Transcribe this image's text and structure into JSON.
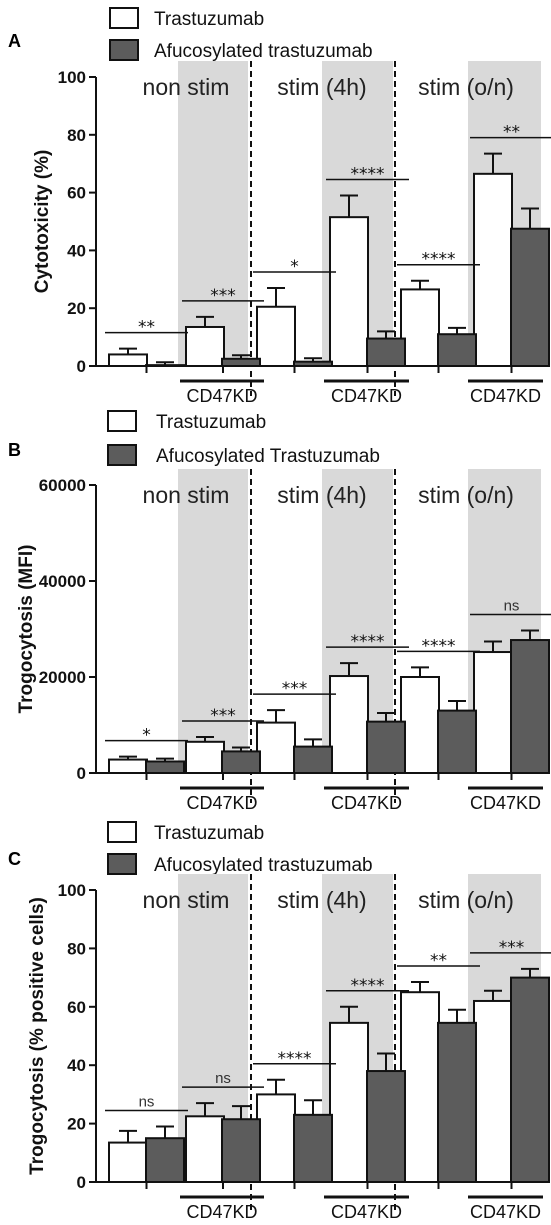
{
  "colors": {
    "trastuzumab": "#ffffff",
    "afucosylated": "#5c5c5c",
    "shade": "#d9d9d9"
  },
  "chart_data": [
    {
      "panel": "A",
      "type": "bar",
      "legend": [
        "Trastuzumab",
        "Afucosylated trastuzumab"
      ],
      "ylabel": "Cytotoxicity (%)",
      "ylim": [
        0,
        100
      ],
      "yticks": [
        "0",
        "20",
        "40",
        "60",
        "80",
        "100"
      ],
      "conditions": [
        "non stim",
        "stim (4h)",
        "stim (o/n)"
      ],
      "kd_label": "CD47KD",
      "series": [
        {
          "name": "Trastuzumab",
          "values": [
            4,
            13.5,
            20.5,
            51.5,
            26.5,
            66.5
          ],
          "errors": [
            2,
            3.5,
            6.5,
            7.5,
            3,
            7
          ]
        },
        {
          "name": "Afucosylated trastuzumab",
          "values": [
            0.3,
            2.5,
            1.5,
            9.5,
            11,
            47.5
          ],
          "errors": [
            1,
            1.2,
            1.2,
            2.5,
            2.2,
            7
          ]
        }
      ],
      "significance": [
        "**",
        "***",
        "*",
        "****",
        "****",
        "**"
      ]
    },
    {
      "panel": "B",
      "type": "bar",
      "legend": [
        "Trastuzumab",
        "Afucosylated Trastuzumab"
      ],
      "ylabel": "Trogocytosis (MFI)",
      "ylim": [
        0,
        60000
      ],
      "yticks": [
        "0",
        "20000",
        "40000",
        "60000"
      ],
      "conditions": [
        "non stim",
        "stim (4h)",
        "stim (o/n)"
      ],
      "kd_label": "CD47KD",
      "series": [
        {
          "name": "Trastuzumab",
          "values": [
            2800,
            6500,
            10500,
            20200,
            20000,
            25200
          ],
          "errors": [
            600,
            1000,
            2600,
            2700,
            2000,
            2200
          ]
        },
        {
          "name": "Afucosylated Trastuzumab",
          "values": [
            2400,
            4500,
            5500,
            10700,
            13000,
            27700
          ],
          "errors": [
            600,
            800,
            1500,
            1800,
            2000,
            2000
          ]
        }
      ],
      "significance": [
        "*",
        "***",
        "***",
        "****",
        "****",
        "ns"
      ]
    },
    {
      "panel": "C",
      "type": "bar",
      "legend": [
        "Trastuzumab",
        "Afucosylated trastuzumab"
      ],
      "ylabel": "Trogocytosis (% positive cells)",
      "ylim": [
        0,
        100
      ],
      "yticks": [
        "0",
        "20",
        "40",
        "60",
        "80",
        "100"
      ],
      "conditions": [
        "non stim",
        "stim (4h)",
        "stim (o/n)"
      ],
      "kd_label": "CD47KD",
      "series": [
        {
          "name": "Trastuzumab",
          "values": [
            13.5,
            22.5,
            30,
            54.5,
            65,
            62
          ],
          "errors": [
            4,
            4.5,
            5,
            5.5,
            3.5,
            3.5
          ]
        },
        {
          "name": "Afucosylated trastuzumab",
          "values": [
            15,
            21.5,
            23,
            38,
            54.5,
            70
          ],
          "errors": [
            4,
            4.5,
            5,
            6,
            4.5,
            3
          ]
        }
      ],
      "significance": [
        "ns",
        "ns",
        "****",
        "****",
        "**",
        "***"
      ]
    }
  ]
}
